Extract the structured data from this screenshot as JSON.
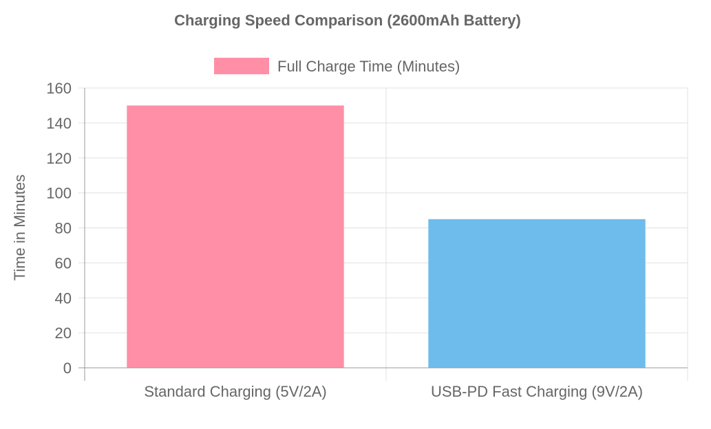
{
  "chart_data": {
    "type": "bar",
    "title": "Charging Speed Comparison (2600mAh Battery)",
    "xlabel": "",
    "ylabel": "Time in Minutes",
    "categories": [
      "Standard Charging (5V/2A)",
      "USB-PD Fast Charging (9V/2A)"
    ],
    "series": [
      {
        "name": "Full Charge Time (Minutes)",
        "values": [
          150,
          85
        ],
        "colors": [
          "#ff8fa6",
          "#6ebcec"
        ]
      }
    ],
    "ylim": [
      0,
      160
    ],
    "yticks": [
      0,
      20,
      40,
      60,
      80,
      100,
      120,
      140,
      160
    ],
    "grid": true,
    "legend_position": "top-center",
    "legend_swatch_color": "#ff8fa6"
  }
}
